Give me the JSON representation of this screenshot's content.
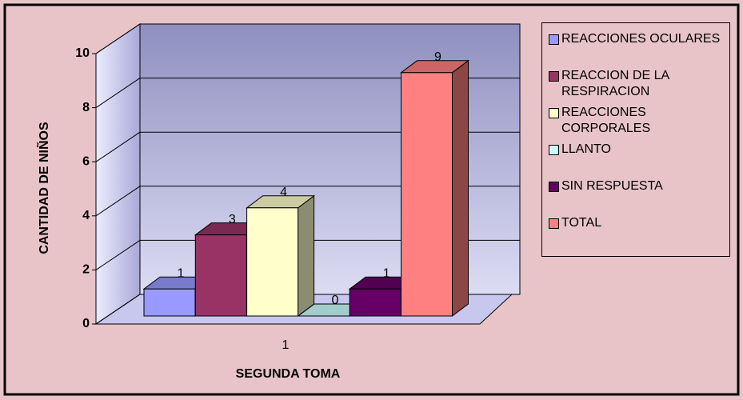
{
  "chart_data": {
    "type": "bar3d",
    "categories": [
      "1"
    ],
    "series": [
      {
        "name": "REACCIONES OCULARES",
        "color": "#9999ff",
        "values": [
          1
        ]
      },
      {
        "name": "REACCION DE LA RESPIRACION",
        "color": "#993366",
        "values": [
          3
        ]
      },
      {
        "name": "REACCIONES CORPORALES",
        "color": "#ffffcc",
        "values": [
          4
        ]
      },
      {
        "name": "LLANTO",
        "color": "#ccffff",
        "values": [
          0
        ]
      },
      {
        "name": "SIN RESPUESTA",
        "color": "#660066",
        "values": [
          1
        ]
      },
      {
        "name": "TOTAL",
        "color": "#ff8080",
        "values": [
          9
        ]
      }
    ],
    "xlabel": "SEGUNDA TOMA",
    "ylabel": "CANTIDAD DE NIÑOS",
    "ylim": [
      0,
      10
    ],
    "yticks": [
      0,
      2,
      4,
      6,
      8,
      10
    ],
    "grid": true,
    "legend": "right"
  }
}
